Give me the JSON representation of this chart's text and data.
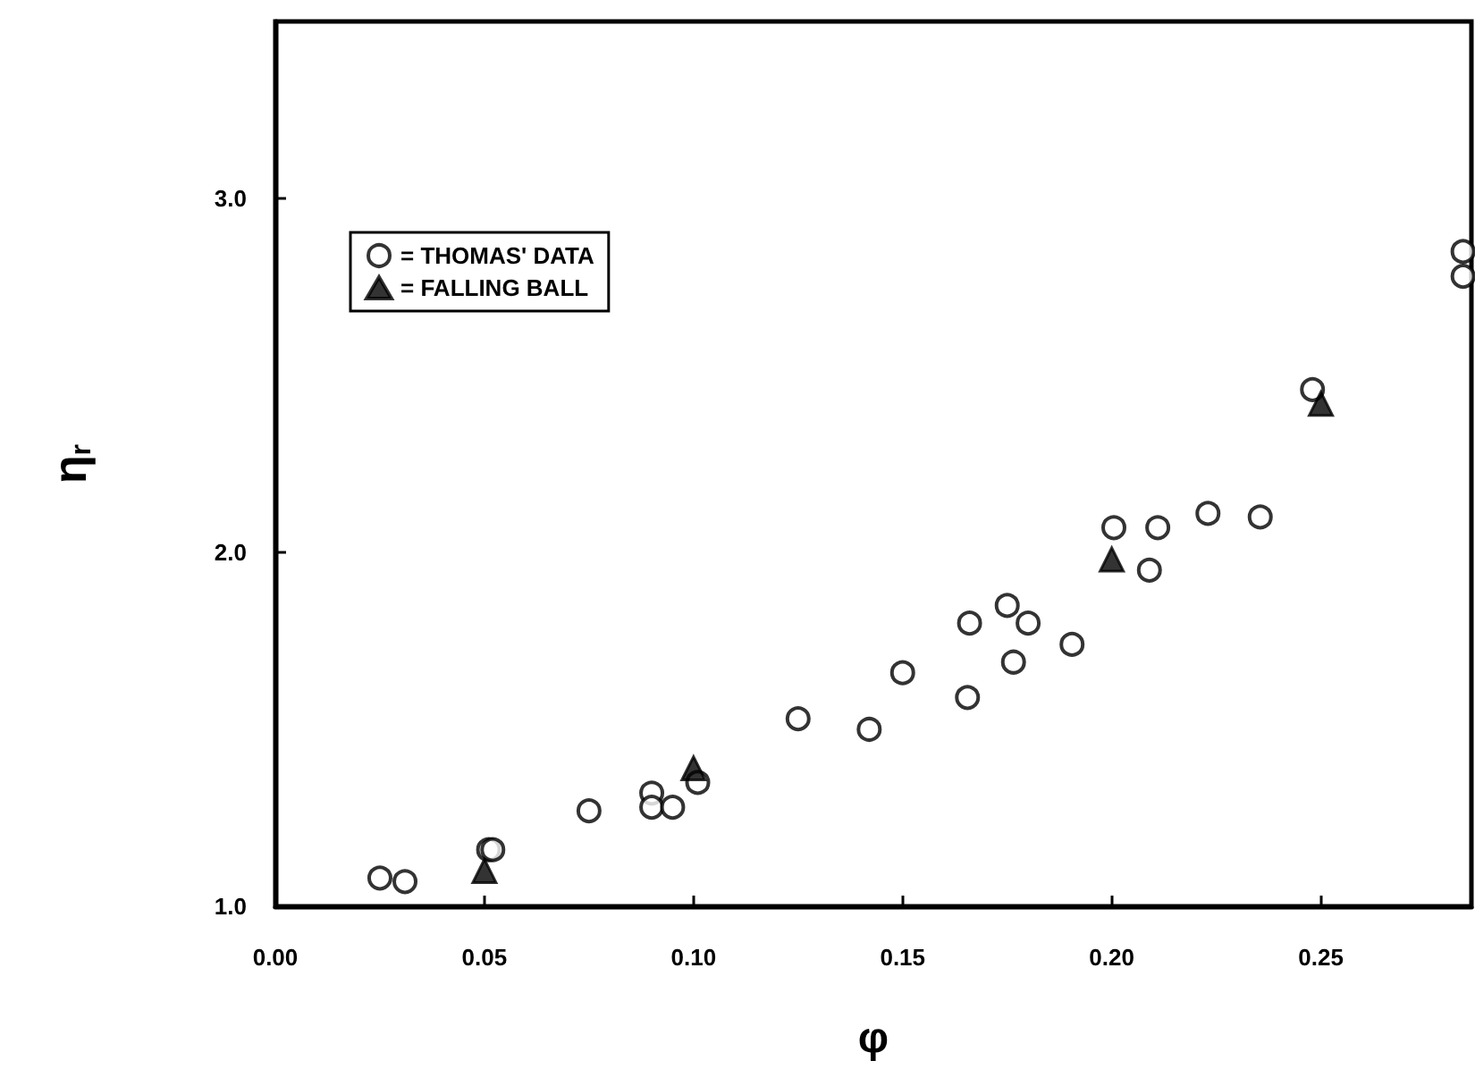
{
  "chart_data": {
    "type": "scatter",
    "xlabel": "φ",
    "ylabel": "η$_{r}$",
    "xlim": [
      0,
      0.286
    ],
    "ylim": [
      1,
      3.5
    ],
    "xticks": [
      {
        "value": 0,
        "label": "0.00"
      },
      {
        "value": 0.05,
        "label": "0.05"
      },
      {
        "value": 0.1,
        "label": "0.10"
      },
      {
        "value": 0.15,
        "label": "0.15"
      },
      {
        "value": 0.2,
        "label": "0.20"
      },
      {
        "value": 0.25,
        "label": "0.25"
      }
    ],
    "yticks": [
      {
        "value": 1,
        "label": "1.0"
      },
      {
        "value": 2,
        "label": "2.0"
      },
      {
        "value": 3,
        "label": "3.0"
      }
    ],
    "grid": false,
    "legend": "top left",
    "series": [
      {
        "name": "= THOMAS' DATA",
        "color": "#000000",
        "marker": "circle",
        "x": [
          0.025,
          0.031,
          0.051,
          0.052,
          0.075,
          0.09,
          0.09,
          0.095,
          0.101,
          0.125,
          0.142,
          0.15,
          0.1655,
          0.166,
          0.175,
          0.1765,
          0.18,
          0.1905,
          0.2005,
          0.209,
          0.211,
          0.223,
          0.2355,
          0.248,
          0.284,
          0.284
        ],
        "values": [
          1.08,
          1.07,
          1.16,
          1.16,
          1.27,
          1.32,
          1.28,
          1.28,
          1.35,
          1.53,
          1.5,
          1.66,
          1.59,
          1.8,
          1.85,
          1.69,
          1.8,
          1.74,
          2.07,
          1.95,
          2.07,
          2.11,
          2.1,
          2.46,
          2.85,
          2.78
        ]
      },
      {
        "name": "= FALLING BALL",
        "color": "#000000",
        "marker": "triangle",
        "x": [
          0.05,
          0.1,
          0.2,
          0.25
        ],
        "values": [
          1.1,
          1.39,
          1.98,
          2.42
        ]
      }
    ]
  }
}
